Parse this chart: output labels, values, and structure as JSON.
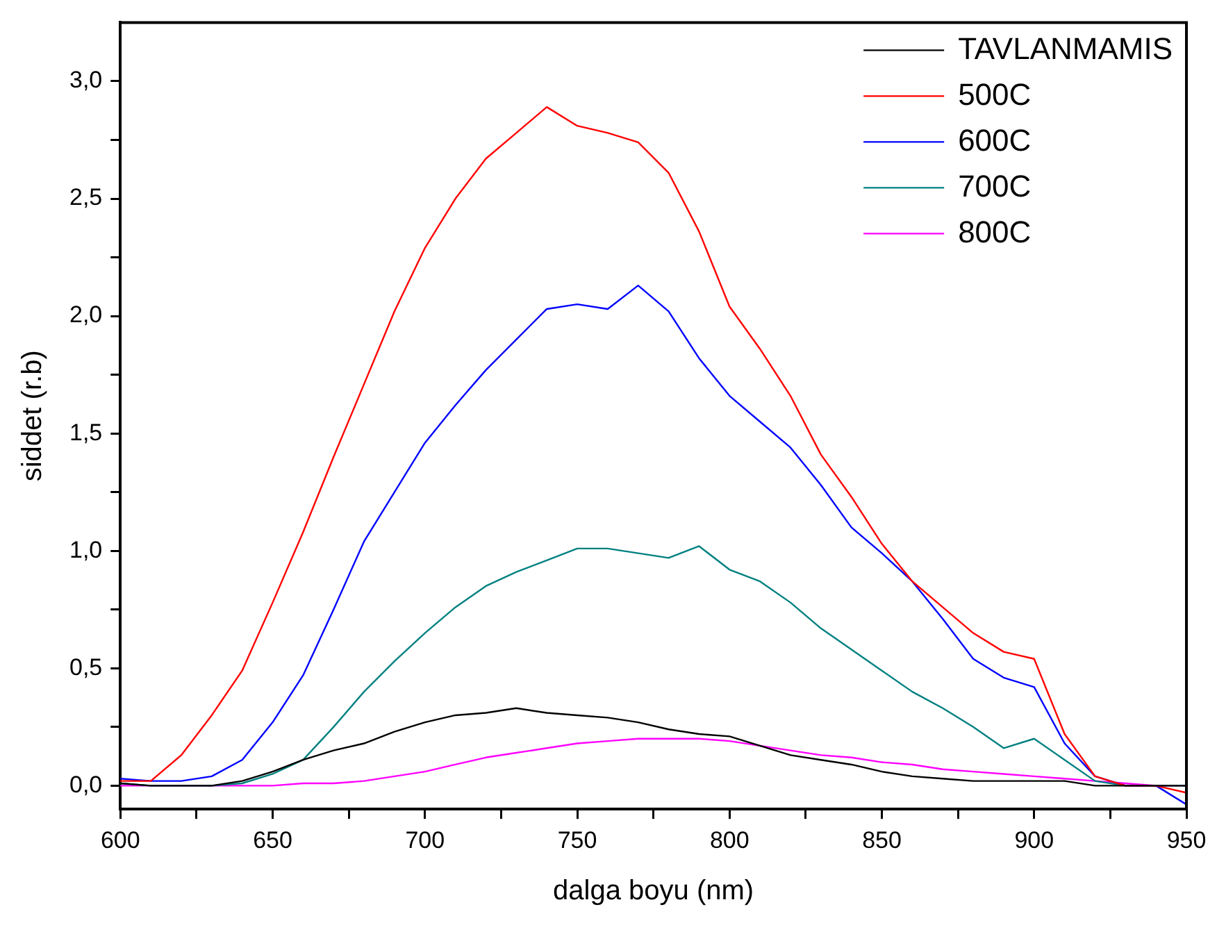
{
  "chart_data": {
    "type": "line",
    "xlabel": "dalga boyu (nm)",
    "ylabel": "siddet (r.b)",
    "x": [
      600,
      610,
      620,
      630,
      640,
      650,
      660,
      670,
      680,
      690,
      700,
      710,
      720,
      730,
      740,
      750,
      760,
      770,
      780,
      790,
      800,
      810,
      820,
      830,
      840,
      850,
      860,
      870,
      880,
      890,
      900,
      910,
      920,
      930,
      940,
      950
    ],
    "series": [
      {
        "name": "TAVLANMAMIS",
        "color": "#000000",
        "values": [
          0.01,
          0.0,
          0.0,
          0.0,
          0.02,
          0.06,
          0.11,
          0.15,
          0.18,
          0.23,
          0.27,
          0.3,
          0.31,
          0.33,
          0.31,
          0.3,
          0.29,
          0.27,
          0.24,
          0.22,
          0.21,
          0.17,
          0.13,
          0.11,
          0.09,
          0.06,
          0.04,
          0.03,
          0.02,
          0.02,
          0.02,
          0.02,
          0.0,
          0.0,
          0.0,
          0.0
        ]
      },
      {
        "name": "500C",
        "color": "#ff0000",
        "values": [
          0.02,
          0.02,
          0.13,
          0.3,
          0.49,
          0.78,
          1.08,
          1.4,
          1.71,
          2.02,
          2.29,
          2.5,
          2.67,
          2.78,
          2.89,
          2.81,
          2.78,
          2.74,
          2.61,
          2.36,
          2.04,
          1.86,
          1.66,
          1.41,
          1.23,
          1.03,
          0.87,
          0.76,
          0.65,
          0.57,
          0.54,
          0.22,
          0.04,
          0.0,
          0.0,
          -0.03
        ]
      },
      {
        "name": "600C",
        "color": "#0000ff",
        "values": [
          0.03,
          0.02,
          0.02,
          0.04,
          0.11,
          0.27,
          0.47,
          0.75,
          1.04,
          1.25,
          1.46,
          1.62,
          1.77,
          1.9,
          2.03,
          2.05,
          2.03,
          2.13,
          2.02,
          1.82,
          1.66,
          1.55,
          1.44,
          1.28,
          1.1,
          0.99,
          0.87,
          0.71,
          0.54,
          0.46,
          0.42,
          0.18,
          0.04,
          0.0,
          0.0,
          -0.08
        ]
      },
      {
        "name": "700C",
        "color": "#008080",
        "values": [
          0.01,
          0.0,
          0.0,
          0.0,
          0.01,
          0.05,
          0.11,
          0.25,
          0.4,
          0.53,
          0.65,
          0.76,
          0.85,
          0.91,
          0.96,
          1.01,
          1.01,
          0.99,
          0.97,
          1.02,
          0.92,
          0.87,
          0.78,
          0.67,
          0.58,
          0.49,
          0.4,
          0.33,
          0.25,
          0.16,
          0.2,
          0.11,
          0.02,
          0.0,
          0.0,
          0.0
        ]
      },
      {
        "name": "800C",
        "color": "#ff00ff",
        "values": [
          0.0,
          0.0,
          0.0,
          0.0,
          0.0,
          0.0,
          0.01,
          0.01,
          0.02,
          0.04,
          0.06,
          0.09,
          0.12,
          0.14,
          0.16,
          0.18,
          0.19,
          0.2,
          0.2,
          0.2,
          0.19,
          0.17,
          0.15,
          0.13,
          0.12,
          0.1,
          0.09,
          0.07,
          0.06,
          0.05,
          0.04,
          0.03,
          0.02,
          0.01,
          0.0,
          0.0
        ]
      }
    ],
    "xlim": [
      600,
      950
    ],
    "xticks": [
      600,
      {
        "value": 625,
        "label": null
      },
      650,
      {
        "value": 675,
        "label": null
      },
      700,
      {
        "value": 725,
        "label": null
      },
      750,
      {
        "value": 775,
        "label": null
      },
      800,
      {
        "value": 825,
        "label": null
      },
      850,
      {
        "value": 875,
        "label": null
      },
      900,
      {
        "value": 925,
        "label": null
      },
      950
    ],
    "ylim": [
      -0.1,
      3.25
    ],
    "yticks": [
      {
        "value": 0,
        "label": "0,0"
      },
      {
        "value": 0.25,
        "label": null
      },
      {
        "value": 0.5,
        "label": "0,5"
      },
      {
        "value": 0.75,
        "label": null
      },
      {
        "value": 1,
        "label": "1,0"
      },
      {
        "value": 1.25,
        "label": null
      },
      {
        "value": 1.5,
        "label": "1,5"
      },
      {
        "value": 1.75,
        "label": null
      },
      {
        "value": 2,
        "label": "2,0"
      },
      {
        "value": 2.25,
        "label": null
      },
      {
        "value": 2.5,
        "label": "2,5"
      },
      {
        "value": 2.75,
        "label": null
      },
      {
        "value": 3,
        "label": "3,0"
      }
    ],
    "grid": false,
    "legend": "top right",
    "marker": "none",
    "line_style": "solid"
  }
}
